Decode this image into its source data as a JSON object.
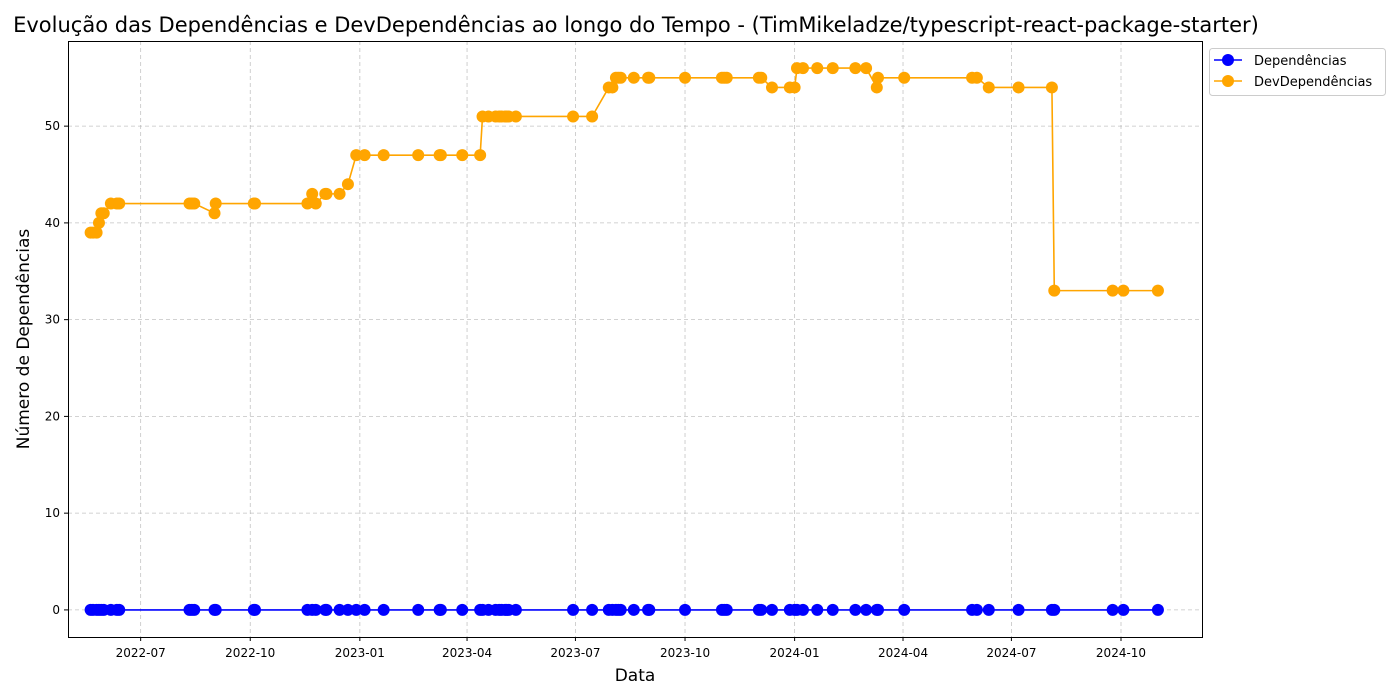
{
  "chart_data": {
    "type": "line",
    "title": "Evolução das Dependências e DevDependências ao longo do Tempo - (TimMikeladze/typescript-react-package-starter)",
    "xlabel": "Data",
    "ylabel": "Número de Dependências",
    "x_ticks": [
      "2022-07",
      "2022-10",
      "2023-01",
      "2023-04",
      "2023-07",
      "2023-10",
      "2024-01",
      "2024-04",
      "2024-07",
      "2024-10"
    ],
    "y_ticks": [
      0,
      10,
      20,
      30,
      40,
      50
    ],
    "xlim": [
      "2022-05-01",
      "2024-12-08"
    ],
    "ylim": [
      -2.8,
      58.8
    ],
    "grid": true,
    "legend_position": "outside-top-right",
    "series": [
      {
        "name": "Dependências",
        "color": "#0000ff",
        "points": [
          [
            "2022-05-20",
            0
          ],
          [
            "2022-05-22",
            0
          ],
          [
            "2022-05-25",
            0
          ],
          [
            "2022-05-27",
            0
          ],
          [
            "2022-05-29",
            0
          ],
          [
            "2022-05-31",
            0
          ],
          [
            "2022-06-06",
            0
          ],
          [
            "2022-06-11",
            0
          ],
          [
            "2022-06-13",
            0
          ],
          [
            "2022-08-11",
            0
          ],
          [
            "2022-08-13",
            0
          ],
          [
            "2022-08-15",
            0
          ],
          [
            "2022-09-01",
            0
          ],
          [
            "2022-09-02",
            0
          ],
          [
            "2022-10-04",
            0
          ],
          [
            "2022-10-05",
            0
          ],
          [
            "2022-11-18",
            0
          ],
          [
            "2022-11-22",
            0
          ],
          [
            "2022-11-25",
            0
          ],
          [
            "2022-12-03",
            0
          ],
          [
            "2022-12-04",
            0
          ],
          [
            "2022-12-15",
            0
          ],
          [
            "2022-12-22",
            0
          ],
          [
            "2022-12-29",
            0
          ],
          [
            "2023-01-05",
            0
          ],
          [
            "2023-01-21",
            0
          ],
          [
            "2023-02-19",
            0
          ],
          [
            "2023-03-09",
            0
          ],
          [
            "2023-03-10",
            0
          ],
          [
            "2023-03-28",
            0
          ],
          [
            "2023-04-12",
            0
          ],
          [
            "2023-04-14",
            0
          ],
          [
            "2023-04-19",
            0
          ],
          [
            "2023-04-25",
            0
          ],
          [
            "2023-04-28",
            0
          ],
          [
            "2023-04-30",
            0
          ],
          [
            "2023-05-03",
            0
          ],
          [
            "2023-05-04",
            0
          ],
          [
            "2023-05-06",
            0
          ],
          [
            "2023-05-12",
            0
          ],
          [
            "2023-06-29",
            0
          ],
          [
            "2023-07-15",
            0
          ],
          [
            "2023-07-29",
            0
          ],
          [
            "2023-08-01",
            0
          ],
          [
            "2023-08-04",
            0
          ],
          [
            "2023-08-06",
            0
          ],
          [
            "2023-08-08",
            0
          ],
          [
            "2023-08-19",
            0
          ],
          [
            "2023-08-31",
            0
          ],
          [
            "2023-09-01",
            0
          ],
          [
            "2023-10-01",
            0
          ],
          [
            "2023-11-01",
            0
          ],
          [
            "2023-11-03",
            0
          ],
          [
            "2023-11-05",
            0
          ],
          [
            "2023-12-02",
            0
          ],
          [
            "2023-12-04",
            0
          ],
          [
            "2023-12-13",
            0
          ],
          [
            "2023-12-28",
            0
          ],
          [
            "2024-01-01",
            0
          ],
          [
            "2024-01-03",
            0
          ],
          [
            "2024-01-08",
            0
          ],
          [
            "2024-01-20",
            0
          ],
          [
            "2024-02-02",
            0
          ],
          [
            "2024-02-21",
            0
          ],
          [
            "2024-03-01",
            0
          ],
          [
            "2024-03-10",
            0
          ],
          [
            "2024-03-11",
            0
          ],
          [
            "2024-04-02",
            0
          ],
          [
            "2024-05-29",
            0
          ],
          [
            "2024-06-02",
            0
          ],
          [
            "2024-06-12",
            0
          ],
          [
            "2024-07-07",
            0
          ],
          [
            "2024-08-04",
            0
          ],
          [
            "2024-08-06",
            0
          ],
          [
            "2024-09-24",
            0
          ],
          [
            "2024-10-03",
            0
          ],
          [
            "2024-11-01",
            0
          ]
        ]
      },
      {
        "name": "DevDependências",
        "color": "#ffa500",
        "points": [
          [
            "2022-05-20",
            39
          ],
          [
            "2022-05-22",
            39
          ],
          [
            "2022-05-25",
            39
          ],
          [
            "2022-05-27",
            40
          ],
          [
            "2022-05-29",
            41
          ],
          [
            "2022-05-31",
            41
          ],
          [
            "2022-06-06",
            42
          ],
          [
            "2022-06-11",
            42
          ],
          [
            "2022-06-13",
            42
          ],
          [
            "2022-08-11",
            42
          ],
          [
            "2022-08-13",
            42
          ],
          [
            "2022-08-15",
            42
          ],
          [
            "2022-09-01",
            41
          ],
          [
            "2022-09-02",
            42
          ],
          [
            "2022-10-04",
            42
          ],
          [
            "2022-10-05",
            42
          ],
          [
            "2022-11-18",
            42
          ],
          [
            "2022-11-22",
            43
          ],
          [
            "2022-11-25",
            42
          ],
          [
            "2022-12-03",
            43
          ],
          [
            "2022-12-04",
            43
          ],
          [
            "2022-12-15",
            43
          ],
          [
            "2022-12-22",
            44
          ],
          [
            "2022-12-29",
            47
          ],
          [
            "2023-01-05",
            47
          ],
          [
            "2023-01-21",
            47
          ],
          [
            "2023-02-19",
            47
          ],
          [
            "2023-03-09",
            47
          ],
          [
            "2023-03-10",
            47
          ],
          [
            "2023-03-28",
            47
          ],
          [
            "2023-04-12",
            47
          ],
          [
            "2023-04-14",
            51
          ],
          [
            "2023-04-19",
            51
          ],
          [
            "2023-04-25",
            51
          ],
          [
            "2023-04-28",
            51
          ],
          [
            "2023-04-30",
            51
          ],
          [
            "2023-05-03",
            51
          ],
          [
            "2023-05-04",
            51
          ],
          [
            "2023-05-06",
            51
          ],
          [
            "2023-05-12",
            51
          ],
          [
            "2023-06-29",
            51
          ],
          [
            "2023-07-15",
            51
          ],
          [
            "2023-07-29",
            54
          ],
          [
            "2023-08-01",
            54
          ],
          [
            "2023-08-04",
            55
          ],
          [
            "2023-08-06",
            55
          ],
          [
            "2023-08-08",
            55
          ],
          [
            "2023-08-19",
            55
          ],
          [
            "2023-08-31",
            55
          ],
          [
            "2023-09-01",
            55
          ],
          [
            "2023-10-01",
            55
          ],
          [
            "2023-11-01",
            55
          ],
          [
            "2023-11-03",
            55
          ],
          [
            "2023-11-05",
            55
          ],
          [
            "2023-12-02",
            55
          ],
          [
            "2023-12-04",
            55
          ],
          [
            "2023-12-13",
            54
          ],
          [
            "2023-12-28",
            54
          ],
          [
            "2024-01-01",
            54
          ],
          [
            "2024-01-03",
            56
          ],
          [
            "2024-01-08",
            56
          ],
          [
            "2024-01-20",
            56
          ],
          [
            "2024-02-02",
            56
          ],
          [
            "2024-02-21",
            56
          ],
          [
            "2024-03-01",
            56
          ],
          [
            "2024-03-10",
            54
          ],
          [
            "2024-03-11",
            55
          ],
          [
            "2024-04-02",
            55
          ],
          [
            "2024-05-29",
            55
          ],
          [
            "2024-06-02",
            55
          ],
          [
            "2024-06-12",
            54
          ],
          [
            "2024-07-07",
            54
          ],
          [
            "2024-08-04",
            54
          ],
          [
            "2024-08-06",
            33
          ],
          [
            "2024-09-24",
            33
          ],
          [
            "2024-10-03",
            33
          ],
          [
            "2024-11-01",
            33
          ]
        ]
      }
    ]
  }
}
